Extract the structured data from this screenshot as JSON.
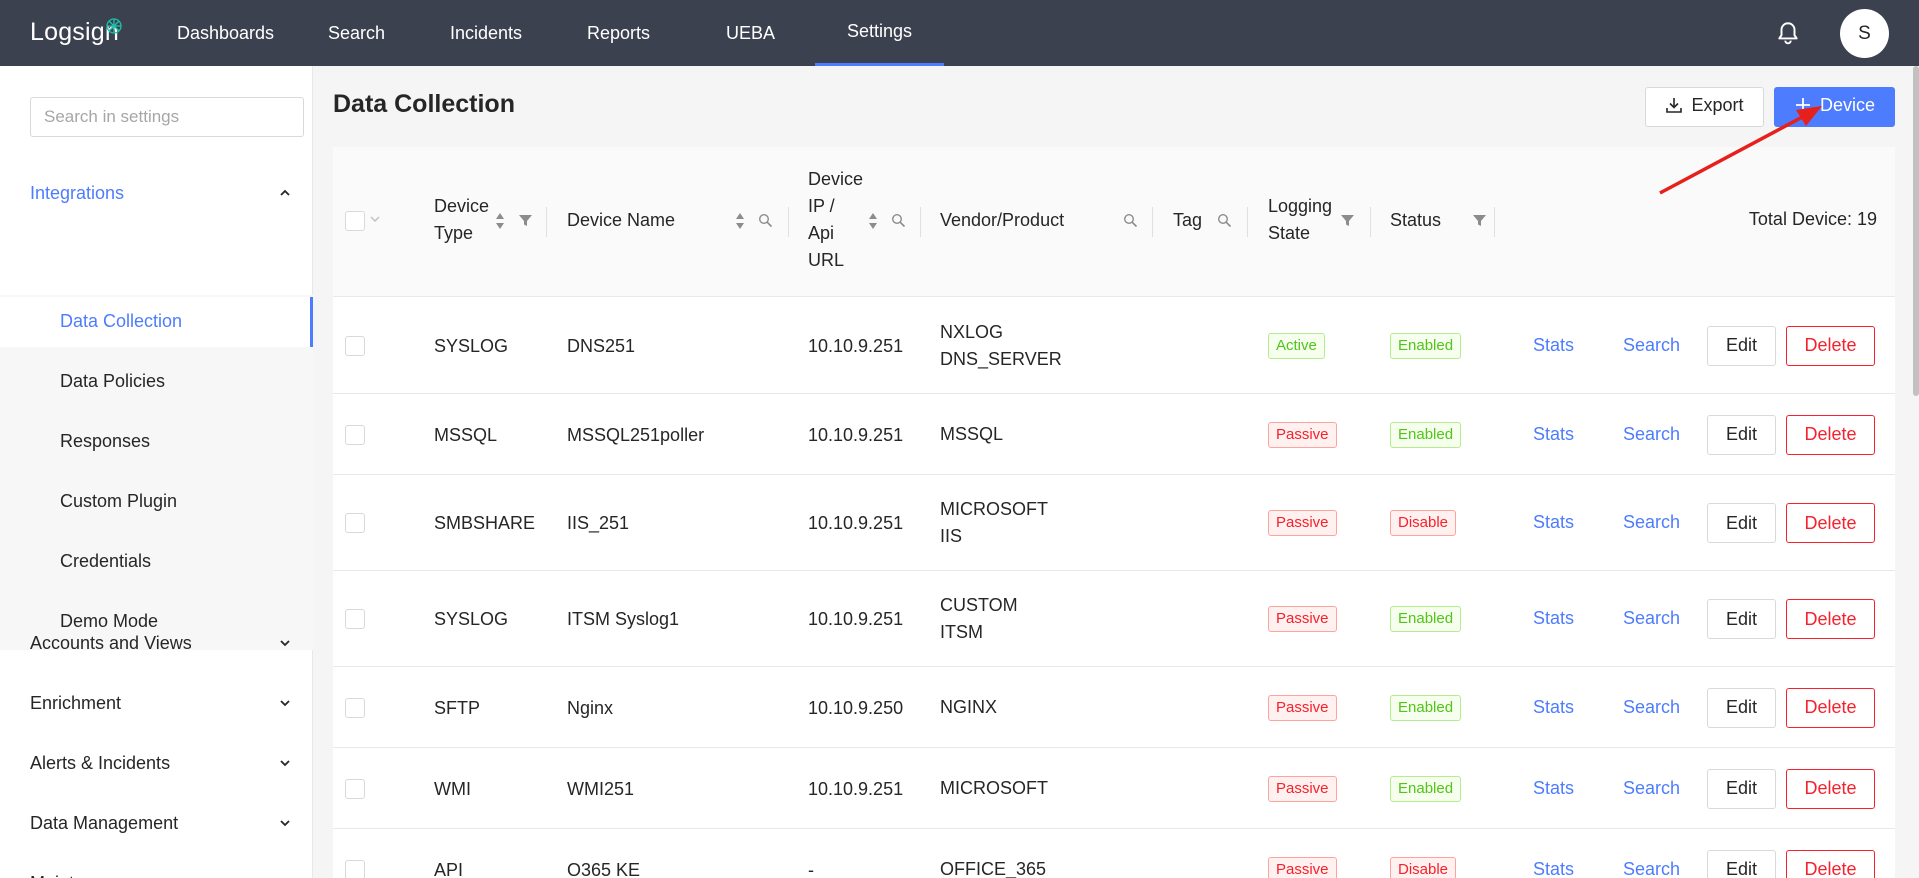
{
  "brand": "Logsign",
  "nav": [
    {
      "label": "Dashboards"
    },
    {
      "label": "Search"
    },
    {
      "label": "Incidents"
    },
    {
      "label": "Reports"
    },
    {
      "label": "UEBA"
    },
    {
      "label": "Settings",
      "active": true
    }
  ],
  "user": {
    "initial": "S"
  },
  "sidebar": {
    "search_placeholder": "Search in settings",
    "groups": [
      {
        "label": "Integrations",
        "expanded": true
      },
      {
        "label": "Accounts and Views"
      },
      {
        "label": "Enrichment"
      },
      {
        "label": "Alerts & Incidents"
      },
      {
        "label": "Data Management"
      },
      {
        "label": "Maintenance"
      }
    ],
    "sub_items": [
      {
        "label": "Data Collection",
        "active": true
      },
      {
        "label": "Data Policies"
      },
      {
        "label": "Responses"
      },
      {
        "label": "Custom Plugin"
      },
      {
        "label": "Credentials"
      },
      {
        "label": "Demo Mode"
      }
    ]
  },
  "page": {
    "title": "Data Collection",
    "export_label": "Export",
    "add_device_label": "Device"
  },
  "table": {
    "columns": {
      "device_type": [
        "Device",
        "Type"
      ],
      "device_name": "Device Name",
      "device_ip": [
        "Device",
        "IP /",
        "Api",
        "URL"
      ],
      "vendor_product": "Vendor/Product",
      "tag": "Tag",
      "logging_state": [
        "Logging",
        "State"
      ],
      "status": "Status"
    },
    "total_label": "Total Device: 19",
    "stats_label": "Stats",
    "search_label": "Search",
    "edit_label": "Edit",
    "delete_label": "Delete",
    "rows": [
      {
        "type": "SYSLOG",
        "name": "DNS251",
        "ip": "10.10.9.251",
        "vendor": [
          "NXLOG",
          "DNS_SERVER"
        ],
        "logging": "Active",
        "status": "Enabled"
      },
      {
        "type": "MSSQL",
        "name": "MSSQL251poller",
        "ip": "10.10.9.251",
        "vendor": [
          "MSSQL"
        ],
        "logging": "Passive",
        "status": "Enabled"
      },
      {
        "type": "SMBSHARE",
        "name": "IIS_251",
        "ip": "10.10.9.251",
        "vendor": [
          "MICROSOFT",
          "IIS"
        ],
        "logging": "Passive",
        "status": "Disable"
      },
      {
        "type": "SYSLOG",
        "name": "ITSM Syslog1",
        "ip": "10.10.9.251",
        "vendor": [
          "CUSTOM",
          "ITSM"
        ],
        "logging": "Passive",
        "status": "Enabled"
      },
      {
        "type": "SFTP",
        "name": "Nginx",
        "ip": "10.10.9.250",
        "vendor": [
          "NGINX"
        ],
        "logging": "Passive",
        "status": "Enabled"
      },
      {
        "type": "WMI",
        "name": "WMI251",
        "ip": "10.10.9.251",
        "vendor": [
          "MICROSOFT"
        ],
        "logging": "Passive",
        "status": "Enabled"
      },
      {
        "type": "API",
        "name": "O365 KE",
        "ip": "-",
        "vendor": [
          "OFFICE_365"
        ],
        "logging": "Passive",
        "status": "Disable"
      }
    ]
  },
  "colors": {
    "primary": "#4d7cfe",
    "topbar": "#3c4150",
    "danger": "#f5222d",
    "success": "#52c41a",
    "annotation_arrow": "#e8201c"
  }
}
